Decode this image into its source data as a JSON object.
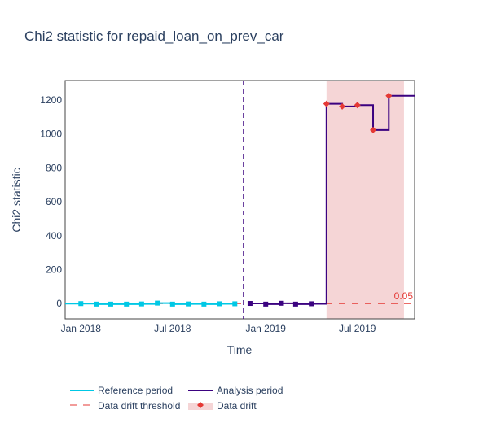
{
  "chart_data": {
    "type": "line",
    "title": "Chi2 statistic for repaid_loan_on_prev_car",
    "xlabel": "Time",
    "ylabel": "Chi2 statistic",
    "x_ticks": [
      "Jan 2018",
      "Jul 2018",
      "Jan 2019",
      "Jul 2019"
    ],
    "x_tick_dates": [
      "2018-01-01",
      "2018-07-01",
      "2019-01-01",
      "2019-07-01"
    ],
    "xlim": [
      "2017-12-01",
      "2019-10-22"
    ],
    "y_ticks": [
      0,
      200,
      400,
      600,
      800,
      1000,
      1200
    ],
    "ylim": [
      -90,
      1315
    ],
    "grid": false,
    "series": [
      {
        "name": "Reference period",
        "color": "#00c8e5",
        "marker": "square",
        "step": "hv",
        "x": [
          "2017-12-01",
          "2018-01-01",
          "2018-02-01",
          "2018-03-01",
          "2018-04-01",
          "2018-05-01",
          "2018-06-01",
          "2018-07-01",
          "2018-08-01",
          "2018-09-01",
          "2018-10-01",
          "2018-11-01"
        ],
        "marker_x": [
          "2018-01-01",
          "2018-02-01",
          "2018-03-01",
          "2018-04-01",
          "2018-05-01",
          "2018-06-01",
          "2018-07-01",
          "2018-08-01",
          "2018-09-01",
          "2018-10-01",
          "2018-11-01"
        ],
        "y": [
          0,
          0,
          -3,
          -3,
          -3,
          -2,
          3,
          -3,
          -2,
          -3,
          -1,
          -1
        ]
      },
      {
        "name": "Analysis period",
        "color": "#3b0280",
        "marker": "square",
        "step": "hv",
        "x": [
          "2018-12-01",
          "2019-01-01",
          "2019-02-01",
          "2019-03-01",
          "2019-04-01",
          "2019-05-01",
          "2019-06-01",
          "2019-07-01",
          "2019-08-01",
          "2019-09-01",
          "2019-10-01",
          "2019-10-22"
        ],
        "y": [
          1,
          -3,
          2,
          -3,
          -1,
          1178,
          1162,
          1170,
          1023,
          1225,
          1225,
          1225
        ],
        "marker_x": [
          "2018-12-01",
          "2019-01-01",
          "2019-02-01",
          "2019-03-01",
          "2019-04-01"
        ]
      }
    ],
    "drift_points": {
      "name": "Data drift",
      "color": "#e53935",
      "marker": "diamond",
      "x": [
        "2019-05-01",
        "2019-06-01",
        "2019-07-01",
        "2019-08-01",
        "2019-09-01"
      ],
      "y": [
        1178,
        1162,
        1170,
        1023,
        1225
      ]
    },
    "threshold": {
      "name": "Data drift threshold",
      "value": 0.05,
      "label": "0.05",
      "color": "#e53935"
    },
    "period_boundary": {
      "x": "2018-11-18",
      "color": "#3b0280"
    },
    "drift_region": {
      "x0": "2019-05-01",
      "x1": "2019-10-01",
      "color": "#f5d5d6"
    },
    "legend": {
      "position": "bottom",
      "items": [
        "Reference period",
        "Analysis period",
        "Data drift threshold",
        "Data drift"
      ]
    }
  }
}
